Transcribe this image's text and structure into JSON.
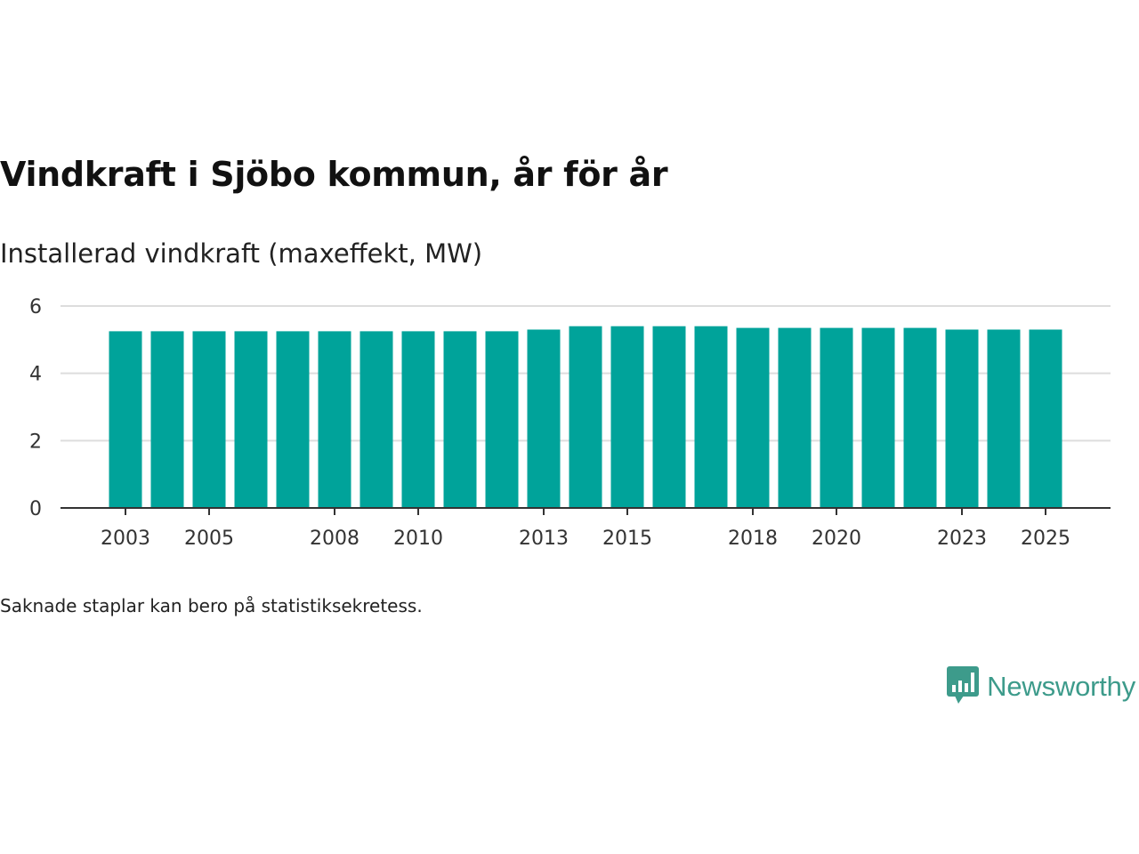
{
  "title": "Vindkraft i Sjöbo kommun, år för år",
  "subtitle": "Installerad vindkraft (maxeffekt, MW)",
  "footnote": "Saknade staplar kan bero på statistiksekretess.",
  "brand": {
    "name": "Newsworthy",
    "icon": "newsworthy-logo-icon"
  },
  "colors": {
    "bar": "#00a39a",
    "grid": "#dddddd",
    "axis": "#333333",
    "brand": "#3d9b8b"
  },
  "chart_data": {
    "type": "bar",
    "title": "Vindkraft i Sjöbo kommun, år för år",
    "xlabel": "",
    "ylabel": "Installerad vindkraft (maxeffekt, MW)",
    "ylim": [
      0,
      6
    ],
    "yticks": [
      0,
      2,
      4,
      6
    ],
    "categories": [
      "2003",
      "2004",
      "2005",
      "2006",
      "2007",
      "2008",
      "2009",
      "2010",
      "2011",
      "2012",
      "2013",
      "2014",
      "2015",
      "2016",
      "2017",
      "2018",
      "2019",
      "2020",
      "2021",
      "2022",
      "2023",
      "2024",
      "2025"
    ],
    "xtick_labels": [
      "2003",
      "2005",
      "2008",
      "2010",
      "2013",
      "2015",
      "2018",
      "2020",
      "2023",
      "2025"
    ],
    "values": [
      5.25,
      5.25,
      5.25,
      5.25,
      5.25,
      5.25,
      5.25,
      5.25,
      5.25,
      5.25,
      5.3,
      5.4,
      5.4,
      5.4,
      5.4,
      5.35,
      5.35,
      5.35,
      5.35,
      5.35,
      5.3,
      5.3,
      5.3
    ],
    "grid": true,
    "legend": "none"
  }
}
